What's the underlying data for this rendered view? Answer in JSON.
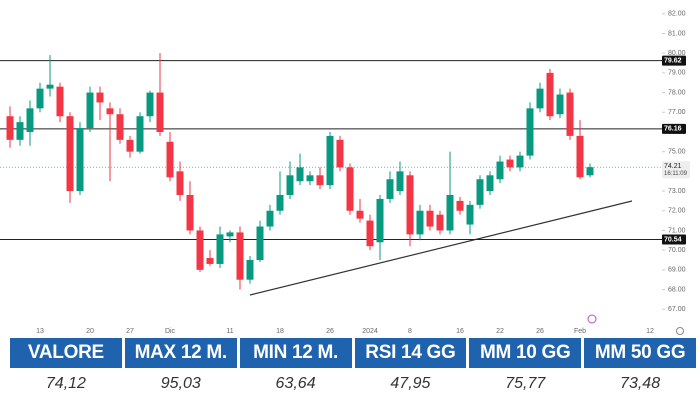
{
  "chart_data": {
    "type": "candlestick",
    "categories": [
      null,
      null,
      null,
      "13",
      null,
      null,
      null,
      null,
      "20",
      null,
      null,
      null,
      "27",
      null,
      null,
      null,
      "Dic",
      null,
      null,
      null,
      null,
      null,
      "11",
      null,
      null,
      null,
      null,
      "18",
      null,
      null,
      null,
      null,
      "26",
      null,
      null,
      null,
      "2024",
      null,
      null,
      null,
      "8",
      null,
      null,
      null,
      null,
      "16",
      null,
      null,
      null,
      "22",
      null,
      null,
      null,
      "26",
      null,
      null,
      null,
      "Feb",
      null,
      null,
      null,
      null,
      null,
      null,
      "12",
      null
    ],
    "open": [
      76.8,
      75.6,
      76.0,
      77.2,
      78.2,
      78.3,
      76.8,
      73.0,
      76.2,
      78.0,
      77.2,
      76.9,
      75.6,
      75.0,
      76.8,
      78.0,
      75.5,
      74.0,
      72.8,
      71.0,
      69.6,
      69.3,
      70.7,
      70.9,
      68.5,
      69.5,
      71.2,
      72.0,
      72.8,
      73.5,
      73.5,
      73.8,
      73.3,
      75.6,
      74.2,
      72.0,
      71.5,
      70.4,
      72.6,
      73.0,
      73.8,
      70.8,
      72.0,
      71.8,
      71.0,
      72.5,
      71.3,
      72.3,
      73.0,
      73.6,
      74.6,
      74.2,
      74.8,
      77.2,
      79.0,
      76.9,
      78.0,
      75.8,
      73.8,
      null,
      null,
      null,
      null,
      null,
      null,
      null
    ],
    "high": [
      77.3,
      76.8,
      77.6,
      78.5,
      79.9,
      78.5,
      77.0,
      76.5,
      78.3,
      78.3,
      77.5,
      77.2,
      75.8,
      77.0,
      78.1,
      80.0,
      76.0,
      74.5,
      73.5,
      71.2,
      70.0,
      71.2,
      71.0,
      71.2,
      69.7,
      71.5,
      72.3,
      74.0,
      74.5,
      74.9,
      74.0,
      74.2,
      76.0,
      75.8,
      74.4,
      72.6,
      71.8,
      72.8,
      74.0,
      74.5,
      74.0,
      72.3,
      72.3,
      72.0,
      75.0,
      72.7,
      72.5,
      73.8,
      74.0,
      74.8,
      74.8,
      75.0,
      77.5,
      78.5,
      79.2,
      78.2,
      78.2,
      76.6,
      74.4,
      null,
      null,
      null,
      null,
      null,
      null,
      null
    ],
    "low": [
      75.2,
      75.3,
      75.3,
      77.0,
      77.8,
      76.5,
      72.4,
      72.8,
      76.0,
      76.6,
      73.5,
      75.4,
      74.7,
      74.9,
      76.5,
      75.8,
      73.5,
      72.5,
      70.8,
      68.9,
      69.2,
      69.1,
      70.4,
      68.0,
      68.3,
      69.4,
      71.0,
      71.8,
      72.6,
      73.3,
      73.3,
      73.1,
      73.1,
      74.0,
      71.8,
      71.4,
      70.0,
      69.5,
      72.4,
      72.8,
      70.2,
      70.5,
      71.0,
      70.8,
      70.8,
      71.8,
      70.8,
      72.1,
      72.8,
      73.4,
      74.0,
      74.0,
      74.6,
      77.0,
      76.6,
      76.7,
      75.6,
      73.6,
      73.7,
      null,
      null,
      null,
      null,
      null,
      null,
      null
    ],
    "close": [
      75.6,
      76.5,
      77.2,
      78.2,
      78.4,
      76.8,
      73.0,
      76.2,
      78.0,
      77.5,
      76.9,
      75.6,
      75.0,
      76.8,
      78.0,
      76.0,
      73.7,
      72.8,
      71.0,
      69.0,
      69.3,
      70.8,
      70.9,
      68.5,
      69.5,
      71.2,
      72.0,
      72.8,
      73.8,
      74.2,
      73.8,
      73.3,
      75.8,
      74.2,
      72.0,
      71.6,
      70.2,
      72.6,
      73.6,
      74.0,
      70.8,
      72.0,
      71.2,
      71.0,
      72.8,
      72.0,
      72.3,
      73.6,
      73.8,
      74.5,
      74.2,
      74.8,
      77.2,
      78.2,
      76.8,
      77.9,
      75.8,
      73.7,
      74.21,
      null,
      null,
      null,
      null,
      null,
      null,
      null
    ],
    "up_color": "#089981",
    "down_color": "#f23645",
    "ylim": [
      66.2,
      82.7
    ],
    "yticks": [
      {
        "value": 67,
        "label": "67.00"
      },
      {
        "value": 68,
        "label": "68.00"
      },
      {
        "value": 69,
        "label": "69.00"
      },
      {
        "value": 70,
        "label": "70.00"
      },
      {
        "value": 71,
        "label": "71.00"
      },
      {
        "value": 72,
        "label": "72.00"
      },
      {
        "value": 73,
        "label": "73.00"
      },
      {
        "value": 74,
        "label": "74.00"
      },
      {
        "value": 75,
        "label": "75.00"
      },
      {
        "value": 76,
        "label": "76.00"
      },
      {
        "value": 77,
        "label": "77.00"
      },
      {
        "value": 78,
        "label": "78.00"
      },
      {
        "value": 79,
        "label": "79.00"
      },
      {
        "value": 80,
        "label": "80.00"
      },
      {
        "value": 81,
        "label": "81.00"
      },
      {
        "value": 82,
        "label": "82.00"
      }
    ],
    "grid": false,
    "hlines": [
      79.62,
      76.16,
      70.54
    ],
    "last_price": 74.21,
    "last_time": "16:11:09"
  },
  "table": {
    "headers": [
      "VALORE",
      "MAX 12 M.",
      "MIN 12 M.",
      "RSI 14 GG",
      "MM 10 GG",
      "MM 50 GG"
    ],
    "values": [
      "74,12",
      "95,03",
      "63,64",
      "47,95",
      "75,77",
      "73,48"
    ]
  }
}
